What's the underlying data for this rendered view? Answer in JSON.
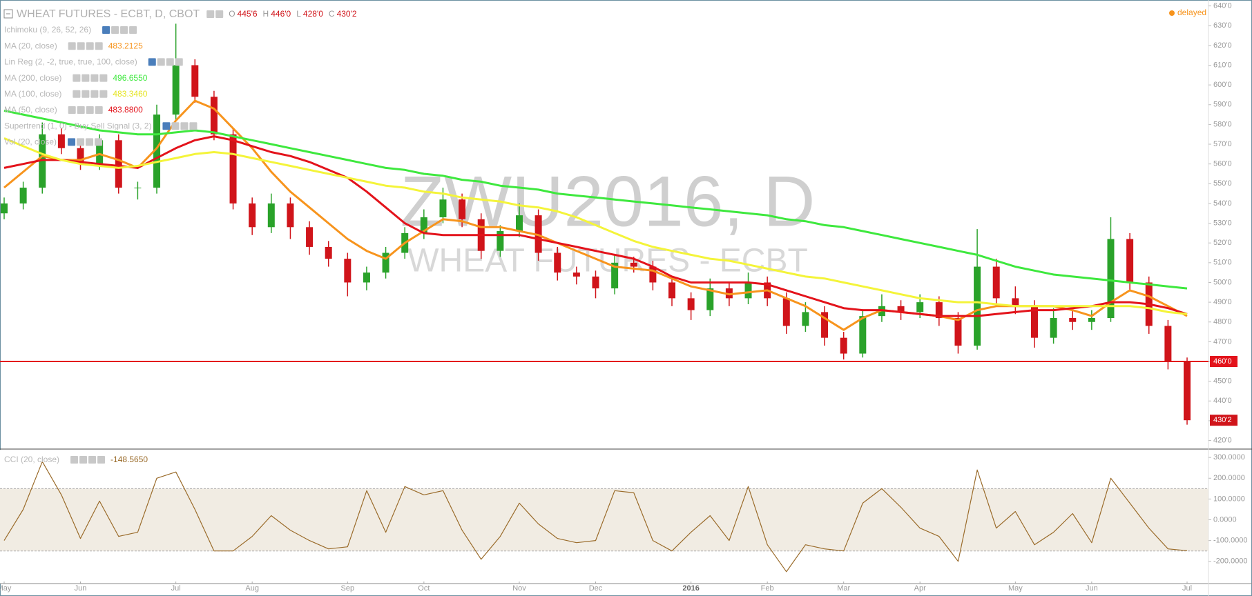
{
  "chart_data": [
    {
      "type": "candlestick",
      "title": "WHEAT FUTURES - ECBT, D, CBOT",
      "watermark": [
        "ZWU2016, D",
        "WHEAT FUTURES - ECBT"
      ],
      "status": "delayed",
      "ohlc_header": [
        {
          "name": "O",
          "value": "445'6"
        },
        {
          "name": "H",
          "value": "446'0"
        },
        {
          "name": "L",
          "value": "428'0"
        },
        {
          "name": "C",
          "value": "430'2"
        }
      ],
      "categories": [
        "May",
        null,
        null,
        null,
        "Jun",
        null,
        null,
        null,
        null,
        "Jul",
        null,
        null,
        null,
        "Aug",
        null,
        null,
        null,
        null,
        "Sep",
        null,
        null,
        null,
        "Oct",
        null,
        null,
        null,
        null,
        "Nov",
        null,
        null,
        null,
        "Dec",
        null,
        null,
        null,
        null,
        "2016",
        null,
        null,
        null,
        "Feb",
        null,
        null,
        null,
        "Mar",
        null,
        null,
        null,
        "Apr",
        null,
        null,
        null,
        null,
        "May",
        null,
        null,
        null,
        "Jun",
        null,
        null,
        null,
        null,
        "Jul"
      ],
      "open": [
        535,
        540,
        548,
        575,
        568,
        560,
        572,
        548,
        548,
        585,
        610,
        594,
        575,
        540,
        528,
        540,
        528,
        518,
        512,
        500,
        505,
        515,
        525,
        533,
        542,
        532,
        516,
        526,
        534,
        515,
        505,
        503,
        497,
        510,
        508,
        500,
        492,
        486,
        497,
        492,
        500,
        492,
        478,
        485,
        472,
        464,
        483,
        488,
        485,
        490,
        482,
        468,
        508,
        492,
        488,
        472,
        482,
        480,
        482,
        522,
        500,
        478,
        460
      ],
      "high": [
        543,
        551,
        581,
        578,
        571,
        575,
        575,
        551,
        590,
        631,
        613,
        597,
        578,
        543,
        545,
        543,
        531,
        521,
        515,
        508,
        518,
        528,
        537,
        548,
        545,
        535,
        529,
        540,
        537,
        518,
        508,
        506,
        514,
        513,
        511,
        503,
        495,
        502,
        500,
        505,
        503,
        495,
        490,
        488,
        475,
        486,
        494,
        491,
        494,
        493,
        485,
        527,
        512,
        498,
        491,
        487,
        486,
        486,
        533,
        525,
        503,
        481,
        462
      ],
      "low": [
        532,
        537,
        545,
        565,
        557,
        557,
        545,
        542,
        545,
        582,
        591,
        572,
        537,
        524,
        525,
        522,
        514,
        508,
        493,
        496,
        502,
        512,
        522,
        530,
        528,
        512,
        513,
        523,
        511,
        501,
        499,
        492,
        494,
        505,
        496,
        488,
        481,
        483,
        488,
        489,
        488,
        474,
        475,
        468,
        461,
        462,
        480,
        481,
        482,
        478,
        464,
        466,
        489,
        484,
        467,
        469,
        476,
        476,
        480,
        496,
        474,
        456,
        428
      ],
      "close": [
        540,
        548,
        575,
        568,
        560,
        572,
        548,
        548,
        585,
        610,
        594,
        575,
        540,
        528,
        540,
        528,
        518,
        512,
        500,
        505,
        515,
        525,
        533,
        542,
        532,
        516,
        526,
        534,
        515,
        505,
        503,
        497,
        510,
        508,
        500,
        492,
        486,
        497,
        492,
        500,
        492,
        478,
        485,
        472,
        464,
        483,
        488,
        485,
        490,
        482,
        468,
        508,
        492,
        488,
        472,
        482,
        480,
        482,
        522,
        500,
        478,
        460,
        430.25
      ],
      "up_color": "#2aa22a",
      "down_color": "#d0141a",
      "series": [
        {
          "name": "MA (20, close)",
          "color": "#f7941d",
          "last_label": "483.2125",
          "values": [
            548,
            556,
            564,
            562,
            562,
            565,
            562,
            558,
            568,
            582,
            592,
            588,
            578,
            568,
            556,
            546,
            538,
            530,
            522,
            516,
            512,
            520,
            526,
            532,
            531,
            528,
            528,
            526,
            524,
            520,
            516,
            512,
            508,
            507,
            506,
            502,
            498,
            496,
            494,
            495,
            496,
            492,
            488,
            482,
            476,
            482,
            486,
            485,
            484,
            483,
            481,
            486,
            488,
            488,
            488,
            488,
            486,
            483,
            490,
            496,
            493,
            488,
            483
          ]
        },
        {
          "name": "MA (50, close)",
          "color": "#e3131b",
          "last_label": "483.8800",
          "values": [
            558,
            560,
            562,
            562,
            561,
            560,
            559,
            558,
            563,
            568,
            572,
            574,
            572,
            569,
            566,
            564,
            561,
            557,
            553,
            546,
            538,
            530,
            525,
            524,
            524,
            524,
            524,
            524,
            522,
            520,
            518,
            516,
            514,
            512,
            508,
            503,
            500,
            500,
            500,
            500,
            499,
            496,
            493,
            490,
            487,
            486,
            486,
            485,
            484,
            483,
            483,
            483,
            484,
            485,
            486,
            486,
            487,
            488,
            490,
            490,
            489,
            487,
            484
          ]
        },
        {
          "name": "MA (100, close)",
          "color": "#f4f43a",
          "last_label": "483.3460",
          "values": [
            573,
            569,
            565,
            562,
            560,
            559,
            558,
            559,
            561,
            563,
            565,
            566,
            565,
            563,
            561,
            559,
            557,
            555,
            553,
            551,
            549,
            548,
            546,
            545,
            543,
            542,
            541,
            539,
            538,
            536,
            533,
            529,
            525,
            521,
            518,
            516,
            514,
            512,
            511,
            509,
            507,
            505,
            503,
            502,
            500,
            498,
            496,
            494,
            492,
            491,
            490,
            490,
            489,
            488,
            488,
            488,
            488,
            488,
            488,
            488,
            487,
            485,
            484
          ]
        },
        {
          "name": "MA (200, close)",
          "color": "#3ee83e",
          "last_label": "496.6550",
          "values": [
            587,
            585,
            583,
            581,
            579,
            577,
            576,
            575,
            575,
            576,
            577,
            576,
            574,
            572,
            570,
            568,
            566,
            564,
            562,
            560,
            558,
            557,
            555,
            554,
            552,
            551,
            549,
            548,
            547,
            545,
            544,
            543,
            542,
            541,
            540,
            539,
            538,
            537,
            536,
            535,
            534,
            532,
            531,
            529,
            528,
            526,
            524,
            522,
            520,
            518,
            516,
            514,
            511,
            508,
            506,
            504,
            503,
            502,
            501,
            500,
            499,
            498,
            497
          ]
        }
      ],
      "indicators": [
        {
          "name": "Ichimoku (9, 26, 52, 26)"
        },
        {
          "name": "Lin Reg (2, -2, true, true, 100, close)"
        },
        {
          "name": "Supertrend (1, 0) - Buy Sell Signal (3, 2)"
        },
        {
          "name": "Vol (20, close)"
        }
      ],
      "hline": {
        "value": 460,
        "label": "460'0",
        "color": "#e3131b"
      },
      "last_price": {
        "value": 430.25,
        "label": "430'2"
      },
      "ylim": [
        416,
        643
      ],
      "yticks": [
        {
          "value": 420,
          "label": "420'0"
        },
        {
          "value": 430,
          "label": "430'0"
        },
        {
          "value": 440,
          "label": "440'0"
        },
        {
          "value": 450,
          "label": "450'0"
        },
        {
          "value": 460,
          "label": "460'0"
        },
        {
          "value": 470,
          "label": "470'0"
        },
        {
          "value": 480,
          "label": "480'0"
        },
        {
          "value": 490,
          "label": "490'0"
        },
        {
          "value": 500,
          "label": "500'0"
        },
        {
          "value": 510,
          "label": "510'0"
        },
        {
          "value": 520,
          "label": "520'0"
        },
        {
          "value": 530,
          "label": "530'0"
        },
        {
          "value": 540,
          "label": "540'0"
        },
        {
          "value": 550,
          "label": "550'0"
        },
        {
          "value": 560,
          "label": "560'0"
        },
        {
          "value": 570,
          "label": "570'0"
        },
        {
          "value": 580,
          "label": "580'0"
        },
        {
          "value": 590,
          "label": "590'0"
        },
        {
          "value": 600,
          "label": "600'0"
        },
        {
          "value": 610,
          "label": "610'0"
        },
        {
          "value": 620,
          "label": "620'0"
        },
        {
          "value": 630,
          "label": "630'0"
        },
        {
          "value": 640,
          "label": "640'0"
        }
      ]
    },
    {
      "type": "line",
      "series": [
        {
          "name": "CCI (20, close)",
          "color": "#9a6b2a",
          "last_label": "-148.5650",
          "values": [
            -100,
            50,
            280,
            120,
            -90,
            90,
            -80,
            -60,
            200,
            230,
            50,
            -150,
            -150,
            -80,
            20,
            -50,
            -100,
            -140,
            -130,
            140,
            -60,
            160,
            120,
            140,
            -50,
            -190,
            -80,
            80,
            -20,
            -90,
            -110,
            -100,
            140,
            130,
            -100,
            -150,
            -60,
            20,
            -100,
            160,
            -120,
            -250,
            -120,
            -140,
            -150,
            80,
            150,
            60,
            -40,
            -80,
            -200,
            240,
            -40,
            40,
            -120,
            -60,
            30,
            -110,
            200,
            80,
            -40,
            -140,
            -148.565
          ]
        }
      ],
      "band": [
        -150,
        150
      ],
      "ylim": [
        -307,
        337
      ],
      "yticks": [
        {
          "value": 300,
          "label": "300.0000"
        },
        {
          "value": 200,
          "label": "200.0000"
        },
        {
          "value": 100,
          "label": "100.0000"
        },
        {
          "value": 0,
          "label": "0.0000"
        },
        {
          "value": -100,
          "label": "-100.0000"
        },
        {
          "value": -200,
          "label": "-200.0000"
        }
      ]
    }
  ]
}
